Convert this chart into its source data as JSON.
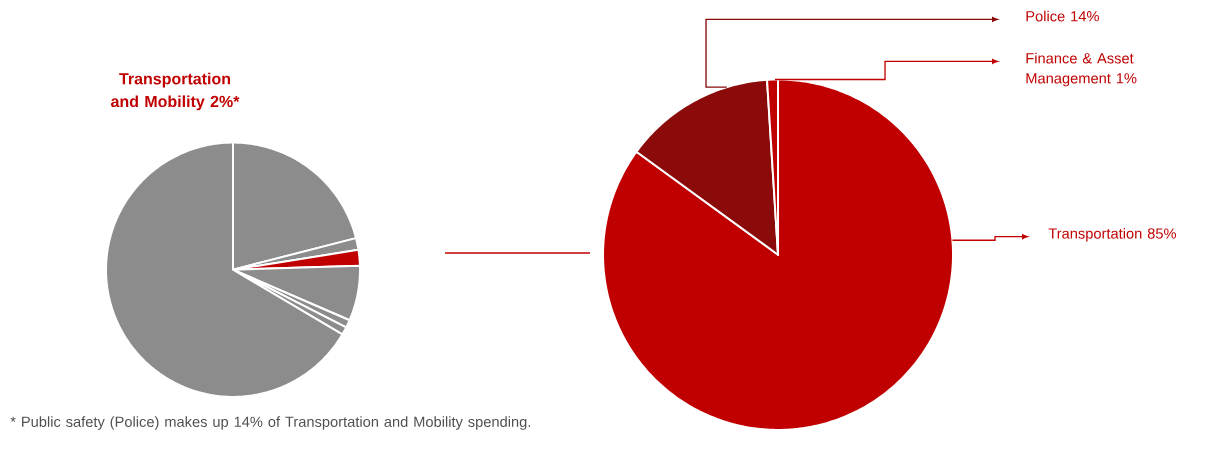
{
  "chart_data": [
    {
      "type": "pie",
      "title": "Transportation and Mobility 2%*",
      "categories": [
        null,
        null,
        null,
        null,
        null,
        null,
        null
      ],
      "values": [
        21,
        1.5,
        2,
        7,
        1,
        1,
        66.5
      ],
      "colors": [
        "#8c8c8c",
        "#8c8c8c",
        "#c00000",
        "#8c8c8c",
        "#8c8c8c",
        "#8c8c8c",
        "#8c8c8c"
      ],
      "annotations": [
        "* Public safety (Police) makes up 14% of Transportation and Mobility spending."
      ]
    },
    {
      "type": "pie",
      "categories": [
        "Transportation",
        "Police",
        "Finance & Asset Management"
      ],
      "values": [
        85,
        14,
        1
      ],
      "colors": [
        "#c00000",
        "#8b0a0a",
        "#c00000"
      ],
      "value_labels": [
        "85%",
        "14%",
        "1%"
      ],
      "legend": "right"
    }
  ]
}
